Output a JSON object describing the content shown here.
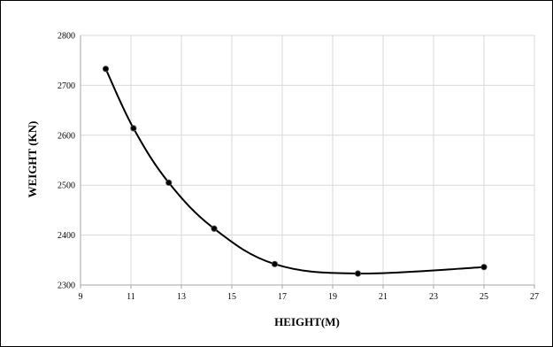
{
  "chart_data": {
    "type": "line",
    "smooth": true,
    "markers": true,
    "xlabel": "HEIGHT(M)",
    "ylabel": "WEIGHT (KN)",
    "xlim": [
      9,
      27
    ],
    "ylim": [
      2300,
      2800
    ],
    "xticks": [
      9,
      11,
      13,
      15,
      17,
      19,
      21,
      23,
      25,
      27
    ],
    "yticks": [
      2300,
      2400,
      2500,
      2600,
      2700,
      2800
    ],
    "grid": true,
    "legend": "none",
    "colors": {
      "line": "#000000",
      "marker": "#000000",
      "grid": "#d9d9d9",
      "axis": "#a6a6a6"
    },
    "series": [
      {
        "x": [
          10,
          11.1,
          12.5,
          14.3,
          16.7,
          20,
          25
        ],
        "y": [
          2733,
          2614,
          2505,
          2413,
          2342,
          2323,
          2336
        ]
      }
    ]
  }
}
